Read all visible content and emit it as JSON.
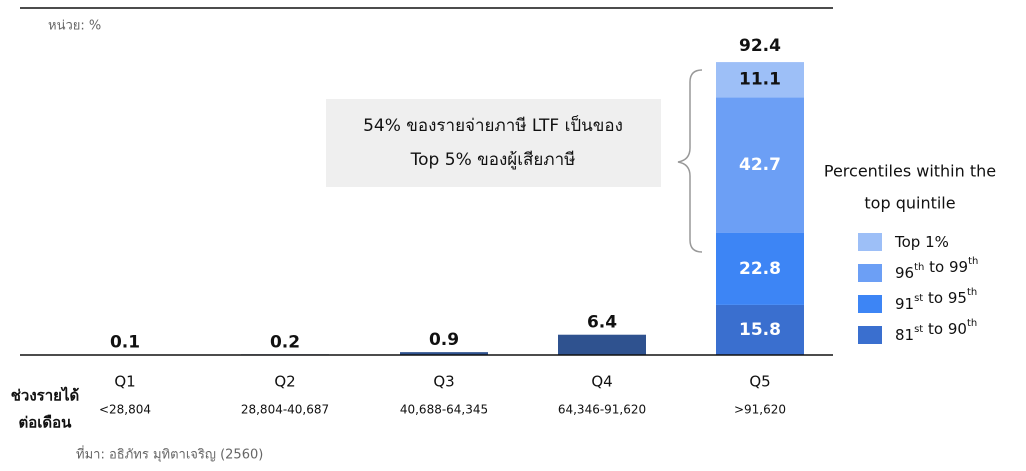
{
  "chart_data": {
    "type": "bar",
    "unit_label": "หน่วย: %",
    "source": "ที่มา: อธิภัทร มุทิตาเจริญ (2560)",
    "axis_label": [
      "ช่วงรายได้",
      "ต่อเดือน"
    ],
    "categories": [
      "Q1",
      "Q2",
      "Q3",
      "Q4",
      "Q5"
    ],
    "sublabels": [
      "<28,804",
      "28,804-40,687",
      "40,688-64,345",
      "64,346-91,620",
      ">91,620"
    ],
    "values": [
      0.1,
      0.2,
      0.9,
      6.4,
      null
    ],
    "color": "#2f528f",
    "stack_total": 92.4,
    "stack_series": [
      {
        "name": "81st to 90th",
        "color": "#3a6fcf",
        "values": [
          15.8
        ]
      },
      {
        "name": "91st to 95th",
        "color": "#3d85f5",
        "values": [
          22.8
        ]
      },
      {
        "name": "96th to 99th",
        "color": "#6c9ff5",
        "values": [
          42.7
        ]
      },
      {
        "name": "Top 1%",
        "color": "#9dbff7",
        "values": [
          11.1
        ]
      }
    ],
    "legend_title": [
      "Percentiles within the",
      "top quintile"
    ],
    "annotation": [
      "54% ของรายจ่ายภาษี LTF เป็นของ",
      "Top 5% ของผู้เสียภาษี"
    ]
  }
}
